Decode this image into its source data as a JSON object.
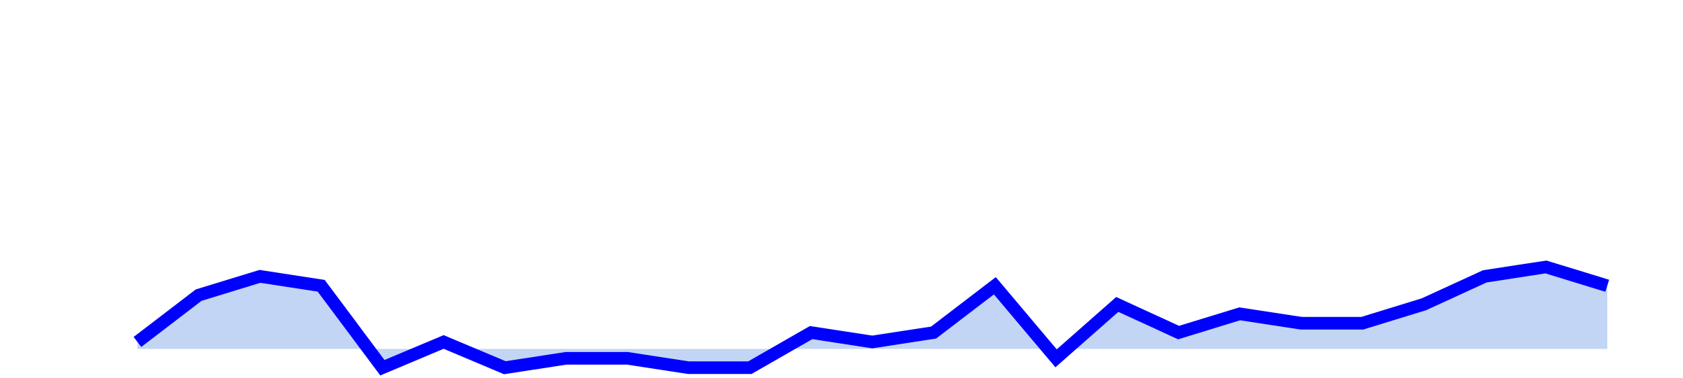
{
  "chart_data": {
    "type": "area",
    "title": "",
    "xlabel": "",
    "ylabel": "",
    "grid": false,
    "legend": "none",
    "x": [
      0,
      1,
      2,
      3,
      4,
      5,
      6,
      7,
      8,
      9,
      10,
      11,
      12,
      13,
      14,
      15,
      16,
      17,
      18,
      19,
      20,
      21,
      22,
      23,
      24
    ],
    "series": [
      {
        "name": "",
        "values": [
          0.3,
          2.3,
          3.1,
          2.7,
          -0.8,
          0.3,
          -0.8,
          -0.4,
          -0.4,
          -0.8,
          -0.8,
          0.7,
          0.3,
          0.7,
          2.7,
          -0.4,
          1.9,
          0.7,
          1.5,
          1.1,
          1.1,
          1.9,
          3.1,
          3.5,
          2.7
        ],
        "line_color": "#0000ff",
        "fill_color": "#c3d5f4"
      }
    ],
    "xlim": [
      0,
      24
    ],
    "ylim": [
      -1,
      14
    ],
    "baseline": 0
  }
}
